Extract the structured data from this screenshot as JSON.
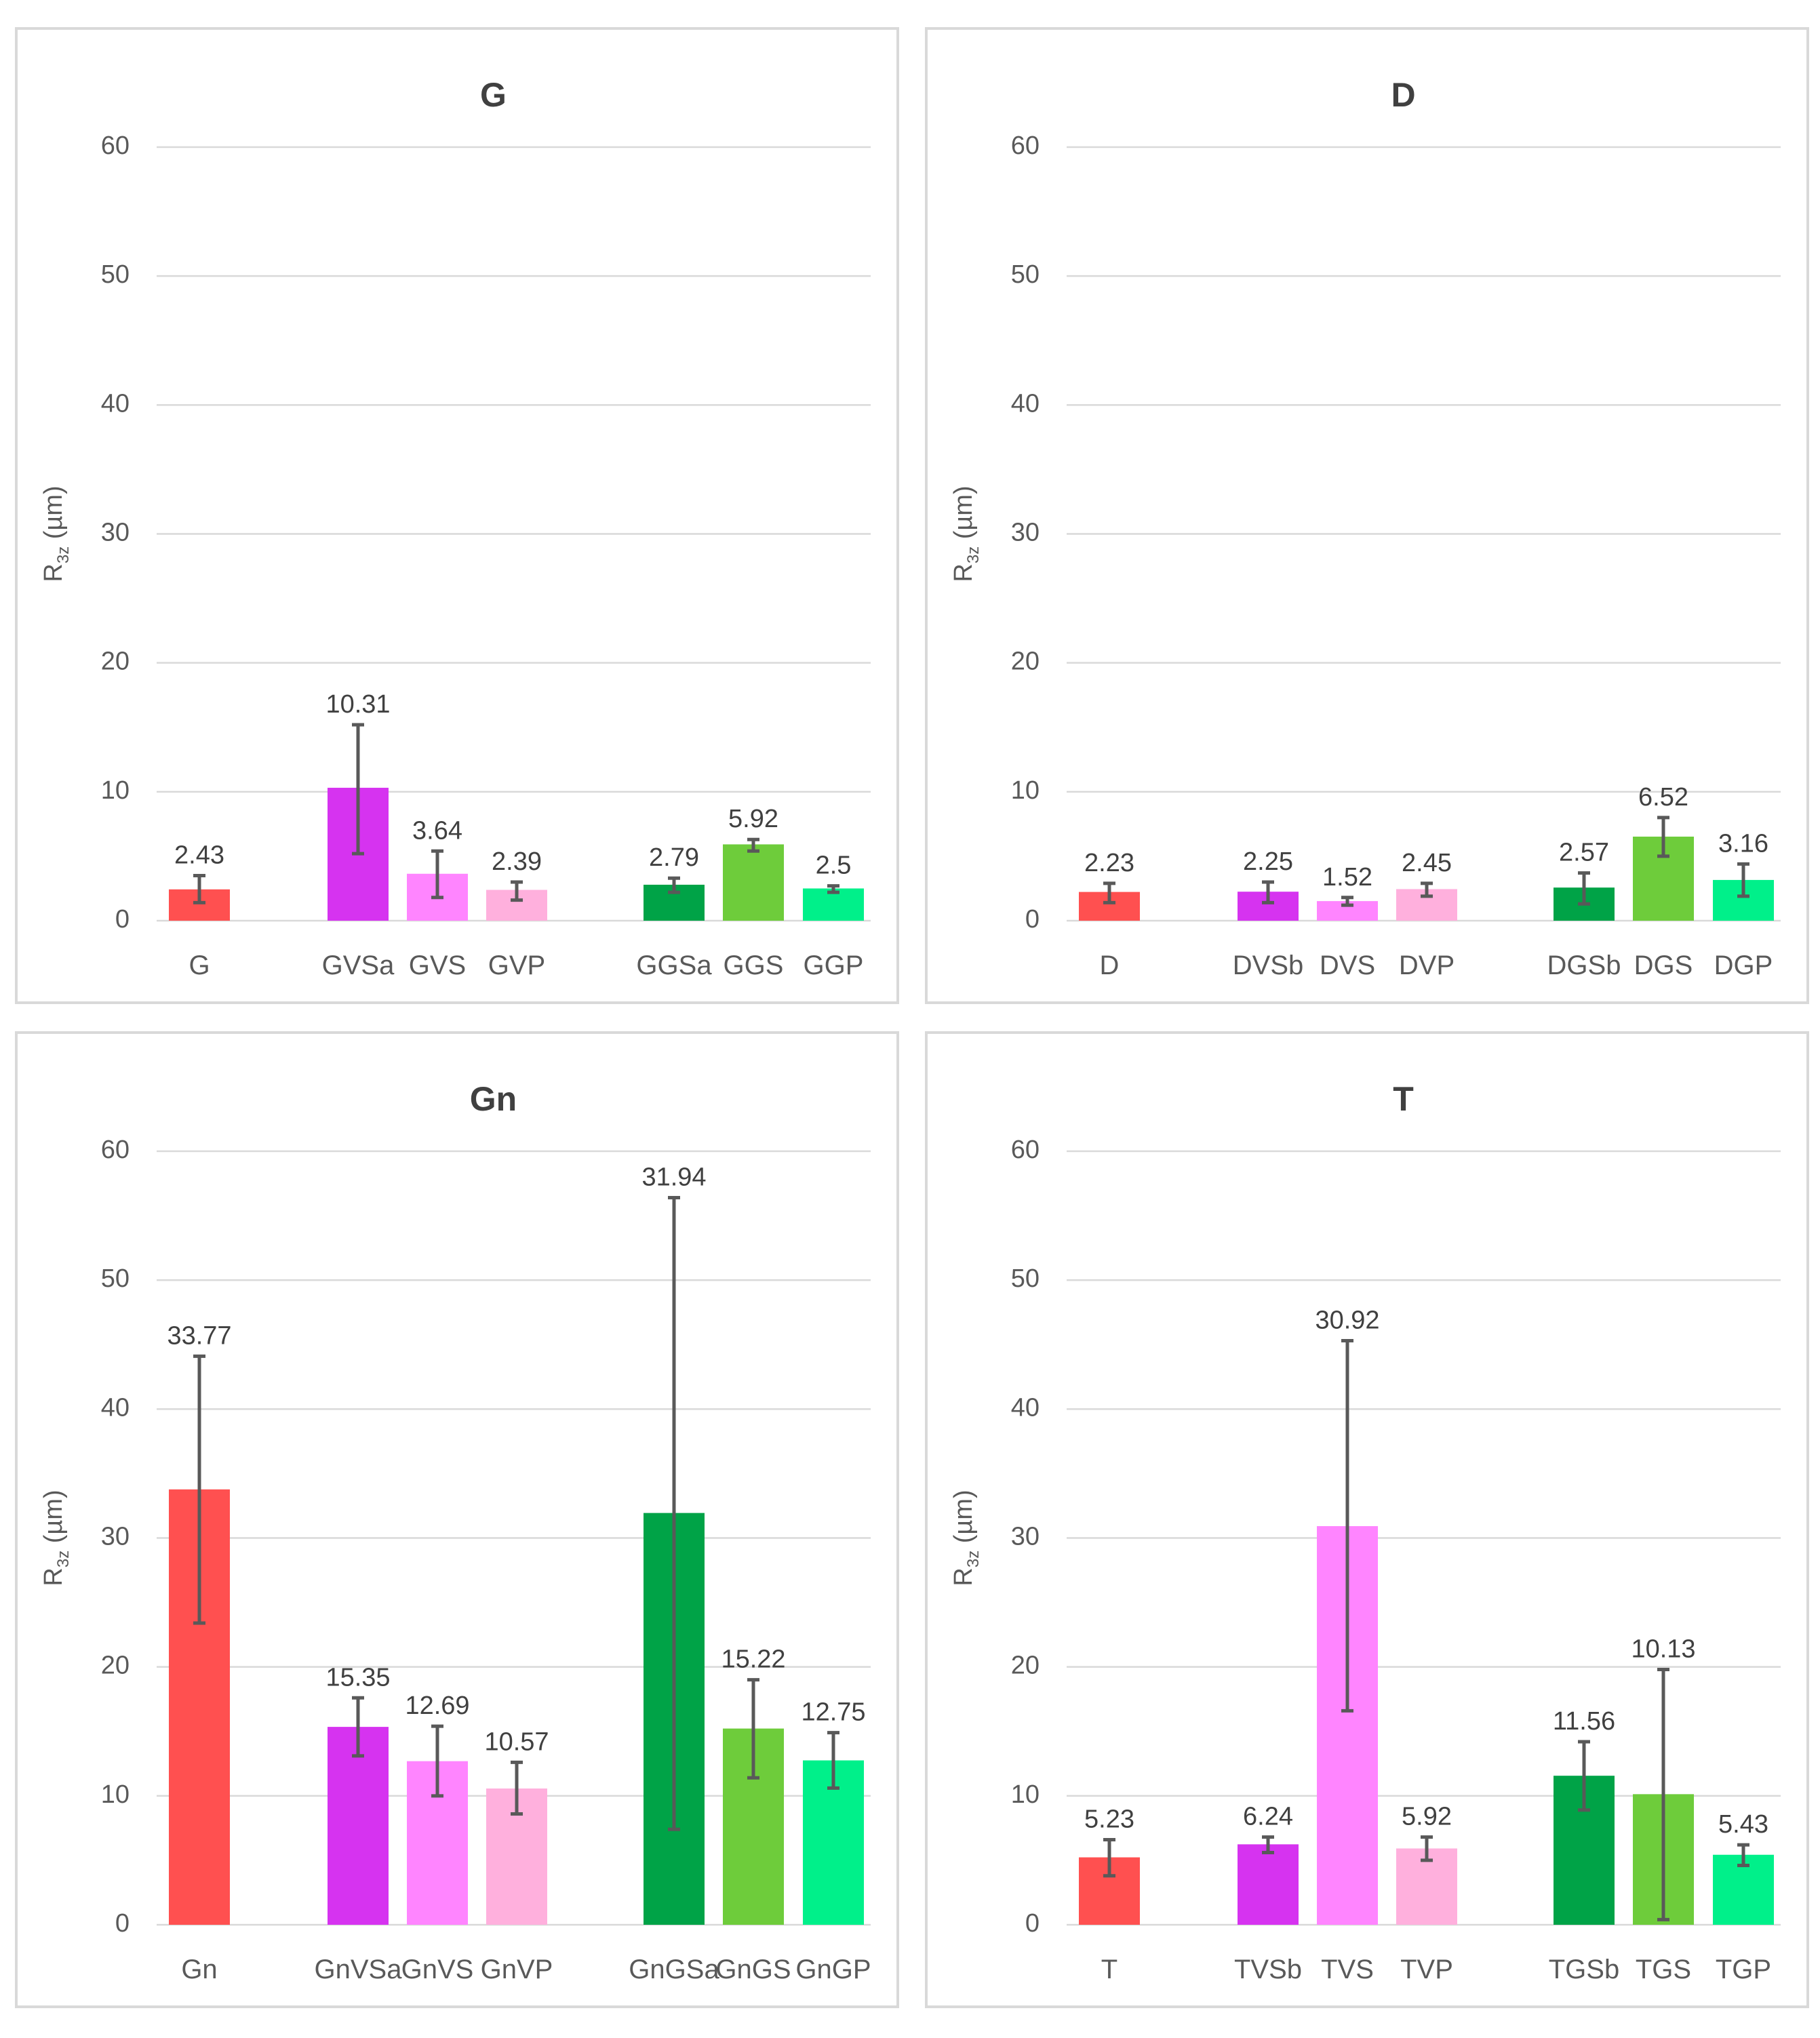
{
  "y_axis": {
    "label_main": "R",
    "label_sub": "3z",
    "label_unit": " (µm)"
  },
  "chart_data": [
    {
      "type": "bar",
      "title": "G",
      "ylabel": "R3z (µm)",
      "ylim": [
        0,
        60
      ],
      "yticks": [
        0,
        10,
        20,
        30,
        40,
        50,
        60
      ],
      "categories": [
        "G",
        "GVSa",
        "GVS",
        "GVP",
        "GGSa",
        "GGS",
        "GGP"
      ],
      "values": [
        2.43,
        10.31,
        3.64,
        2.39,
        2.79,
        5.92,
        2.5
      ],
      "value_labels": [
        "2.43",
        "10.31",
        "3.64",
        "2.39",
        "2.79",
        "5.92",
        "2.5"
      ],
      "error_low": [
        1.4,
        5.2,
        1.8,
        1.6,
        2.2,
        5.4,
        2.2
      ],
      "error_high": [
        3.5,
        15.2,
        5.4,
        3.0,
        3.3,
        6.3,
        2.7
      ],
      "colors": [
        "#ff5050",
        "#d633f0",
        "#ff85ff",
        "#ffb0dd",
        "#00a347",
        "#6ecc3b",
        "#00f08a"
      ]
    },
    {
      "type": "bar",
      "title": "D",
      "ylabel": "R3z (µm)",
      "ylim": [
        0,
        60
      ],
      "yticks": [
        0,
        10,
        20,
        30,
        40,
        50,
        60
      ],
      "categories": [
        "D",
        "DVSb",
        "DVS",
        "DVP",
        "DGSb",
        "DGS",
        "DGP"
      ],
      "values": [
        2.23,
        2.25,
        1.52,
        2.45,
        2.57,
        6.52,
        3.16
      ],
      "value_labels": [
        "2.23",
        "2.25",
        "1.52",
        "2.45",
        "2.57",
        "6.52",
        "3.16"
      ],
      "error_low": [
        1.4,
        1.4,
        1.2,
        1.9,
        1.3,
        5.0,
        1.9
      ],
      "error_high": [
        2.9,
        3.0,
        1.8,
        2.9,
        3.7,
        8.0,
        4.4
      ],
      "colors": [
        "#ff5050",
        "#d633f0",
        "#ff85ff",
        "#ffb0dd",
        "#00a347",
        "#6ecc3b",
        "#00f08a"
      ]
    },
    {
      "type": "bar",
      "title": "Gn",
      "ylabel": "R3z (µm)",
      "ylim": [
        0,
        60
      ],
      "yticks": [
        0,
        10,
        20,
        30,
        40,
        50,
        60
      ],
      "categories": [
        "Gn",
        "GnVSa",
        "GnVS",
        "GnVP",
        "GnGSa",
        "GnGS",
        "GnGP"
      ],
      "values": [
        33.77,
        15.35,
        12.69,
        10.57,
        31.94,
        15.22,
        12.75
      ],
      "value_labels": [
        "33.77",
        "15.35",
        "12.69",
        "10.57",
        "31.94",
        "15.22",
        "12.75"
      ],
      "error_low": [
        23.4,
        13.1,
        10.0,
        8.6,
        7.4,
        11.4,
        10.6
      ],
      "error_high": [
        44.1,
        17.6,
        15.4,
        12.6,
        56.4,
        19.0,
        14.9
      ],
      "colors": [
        "#ff5050",
        "#d633f0",
        "#ff85ff",
        "#ffb0dd",
        "#00a347",
        "#6ecc3b",
        "#00f08a"
      ]
    },
    {
      "type": "bar",
      "title": "T",
      "ylabel": "R3z (µm)",
      "ylim": [
        0,
        60
      ],
      "yticks": [
        0,
        10,
        20,
        30,
        40,
        50,
        60
      ],
      "categories": [
        "T",
        "TVSb",
        "TVS",
        "TVP",
        "TGSb",
        "TGS",
        "TGP"
      ],
      "values": [
        5.23,
        6.24,
        30.92,
        5.92,
        11.56,
        10.13,
        5.43
      ],
      "value_labels": [
        "5.23",
        "6.24",
        "30.92",
        "5.92",
        "11.56",
        "10.13",
        "5.43"
      ],
      "error_low": [
        3.8,
        5.6,
        16.6,
        5.0,
        8.9,
        0.4,
        4.6
      ],
      "error_high": [
        6.6,
        6.8,
        45.3,
        6.8,
        14.2,
        19.8,
        6.2
      ],
      "colors": [
        "#ff5050",
        "#d633f0",
        "#ff85ff",
        "#ffb0dd",
        "#00a347",
        "#6ecc3b",
        "#00f08a"
      ]
    }
  ]
}
